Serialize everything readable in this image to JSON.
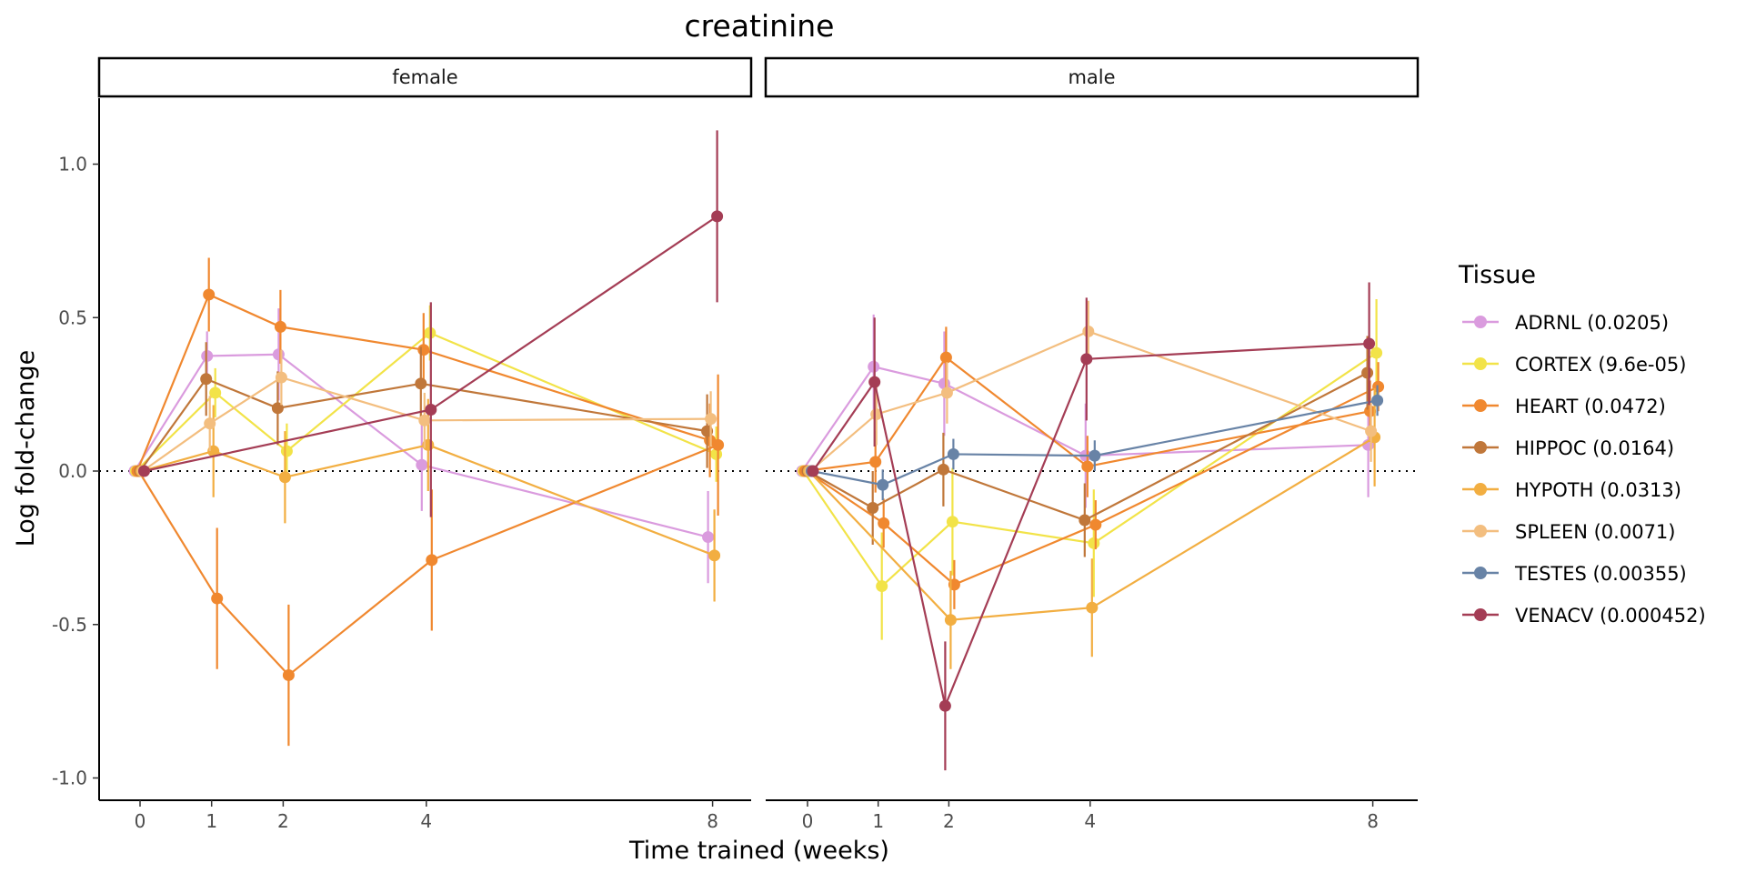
{
  "chart_data": {
    "type": "line",
    "title": "creatinine",
    "xlabel": "Time trained (weeks)",
    "ylabel": "Log fold-change",
    "xticks": [
      "0",
      "1",
      "2",
      "4",
      "8"
    ],
    "xtick_values": [
      0,
      1,
      2,
      4,
      8
    ],
    "yticks": [
      "-1.0",
      "-0.5",
      "0.0",
      "0.5",
      "1.0"
    ],
    "ytick_values": [
      -1.0,
      -0.5,
      0.0,
      0.5,
      1.0
    ],
    "ylim": [
      -1.075,
      1.22
    ],
    "reference_line": 0,
    "legend_title": "Tissue",
    "legend_position": "right",
    "panels": [
      {
        "name": "female",
        "series": [
          {
            "name": "ADRNL (0.0205)",
            "color": "#DA9BDE",
            "x": [
              0,
              1,
              2,
              4,
              8
            ],
            "y": [
              0,
              0.375,
              0.38,
              0.02,
              -0.215
            ],
            "err": [
              0,
              0.08,
              0.15,
              0.15,
              0.15
            ]
          },
          {
            "name": "CORTEX (9.6e-05)",
            "color": "#F2E348",
            "x": [
              0,
              1,
              2,
              4,
              8
            ],
            "y": [
              0,
              0.255,
              0.065,
              0.45,
              0.055
            ],
            "err": [
              0,
              0.08,
              0.09,
              0.09,
              0.09
            ]
          },
          {
            "name": "HEART (0.0472)",
            "color": "#F0882F",
            "x": [
              0,
              1,
              2,
              4,
              8
            ],
            "y": [
              0,
              0.575,
              0.47,
              0.395,
              0.1
            ],
            "err": [
              0,
              0.12,
              0.12,
              0.12,
              0.12
            ]
          },
          {
            "name": "HEART (0.0472)",
            "color": "#F0882F",
            "x": [
              0,
              1,
              2,
              4,
              8
            ],
            "y": [
              0,
              -0.415,
              -0.665,
              -0.29,
              0.085
            ],
            "err": [
              0,
              0.23,
              0.23,
              0.23,
              0.23
            ]
          },
          {
            "name": "HIPPOC (0.0164)",
            "color": "#C0773A",
            "x": [
              0,
              1,
              2,
              4,
              8
            ],
            "y": [
              0,
              0.3,
              0.205,
              0.285,
              0.13
            ],
            "err": [
              0,
              0.12,
              0.12,
              0.12,
              0.12
            ]
          },
          {
            "name": "HYPOTH (0.0313)",
            "color": "#F2AE41",
            "x": [
              0,
              1,
              2,
              4,
              8
            ],
            "y": [
              0,
              0.065,
              -0.02,
              0.085,
              -0.275
            ],
            "err": [
              0,
              0.15,
              0.15,
              0.15,
              0.15
            ]
          },
          {
            "name": "SPLEEN (0.0071)",
            "color": "#F3BE7F",
            "x": [
              0,
              1,
              2,
              4,
              8
            ],
            "y": [
              0,
              0.155,
              0.305,
              0.165,
              0.17
            ],
            "err": [
              0,
              0.09,
              0.09,
              0.09,
              0.09
            ]
          },
          {
            "name": "VENACV (0.000452)",
            "color": "#A43D55",
            "x": [
              0,
              4,
              8
            ],
            "y": [
              0,
              0.2,
              0.83
            ],
            "err": [
              0,
              0.35,
              0.28
            ]
          }
        ]
      },
      {
        "name": "male",
        "series": [
          {
            "name": "ADRNL (0.0205)",
            "color": "#DA9BDE",
            "x": [
              0,
              1,
              2,
              4,
              8
            ],
            "y": [
              0,
              0.34,
              0.285,
              0.05,
              0.085
            ],
            "err": [
              0,
              0.17,
              0.17,
              0.17,
              0.17
            ]
          },
          {
            "name": "CORTEX (9.6e-05)",
            "color": "#F2E348",
            "x": [
              0,
              1,
              2,
              4,
              8
            ],
            "y": [
              0,
              -0.375,
              -0.165,
              -0.235,
              0.385
            ],
            "err": [
              0,
              0.175,
              0.175,
              0.175,
              0.175
            ]
          },
          {
            "name": "HEART (0.0472)",
            "color": "#F0882F",
            "x": [
              0,
              1,
              2,
              4,
              8
            ],
            "y": [
              0,
              0.03,
              0.37,
              0.015,
              0.195
            ],
            "err": [
              0,
              0.1,
              0.1,
              0.1,
              0.1
            ]
          },
          {
            "name": "HEART (0.0472)",
            "color": "#F0882F",
            "x": [
              0,
              1,
              2,
              4,
              8
            ],
            "y": [
              0,
              -0.17,
              -0.37,
              -0.175,
              0.275
            ],
            "err": [
              0,
              0.08,
              0.08,
              0.08,
              0.08
            ]
          },
          {
            "name": "HIPPOC (0.0164)",
            "color": "#C0773A",
            "x": [
              0,
              1,
              2,
              4,
              8
            ],
            "y": [
              0,
              -0.12,
              0.005,
              -0.16,
              0.32
            ],
            "err": [
              0,
              0.12,
              0.12,
              0.12,
              0.12
            ]
          },
          {
            "name": "HYPOTH (0.0313)",
            "color": "#F2AE41",
            "x": [
              0,
              2,
              4,
              8
            ],
            "y": [
              0,
              -0.485,
              -0.445,
              0.11
            ],
            "err": [
              0,
              0.16,
              0.16,
              0.16
            ]
          },
          {
            "name": "SPLEEN (0.0071)",
            "color": "#F3BE7F",
            "x": [
              0,
              1,
              2,
              4,
              8
            ],
            "y": [
              0,
              0.185,
              0.255,
              0.455,
              0.13
            ],
            "err": [
              0,
              0.1,
              0.1,
              0.1,
              0.1
            ]
          },
          {
            "name": "TESTES (0.00355)",
            "color": "#6883A6",
            "x": [
              0,
              1,
              2,
              4,
              8
            ],
            "y": [
              0,
              -0.045,
              0.055,
              0.05,
              0.23
            ],
            "err": [
              0,
              0.05,
              0.05,
              0.05,
              0.05
            ]
          },
          {
            "name": "VENACV (0.000452)",
            "color": "#A43D55",
            "x": [
              0,
              1,
              2,
              4,
              8
            ],
            "y": [
              0,
              0.29,
              -0.765,
              0.365,
              0.415
            ],
            "err": [
              0,
              0.21,
              0.21,
              0.2,
              0.2
            ]
          }
        ]
      }
    ],
    "legend": [
      {
        "name": "ADRNL (0.0205)",
        "color": "#DA9BDE"
      },
      {
        "name": "CORTEX (9.6e-05)",
        "color": "#F2E348"
      },
      {
        "name": "HEART (0.0472)",
        "color": "#F0882F"
      },
      {
        "name": "HIPPOC (0.0164)",
        "color": "#C0773A"
      },
      {
        "name": "HYPOTH (0.0313)",
        "color": "#F2AE41"
      },
      {
        "name": "SPLEEN (0.0071)",
        "color": "#F3BE7F"
      },
      {
        "name": "TESTES (0.00355)",
        "color": "#6883A6"
      },
      {
        "name": "VENACV (0.000452)",
        "color": "#A43D55"
      }
    ]
  }
}
